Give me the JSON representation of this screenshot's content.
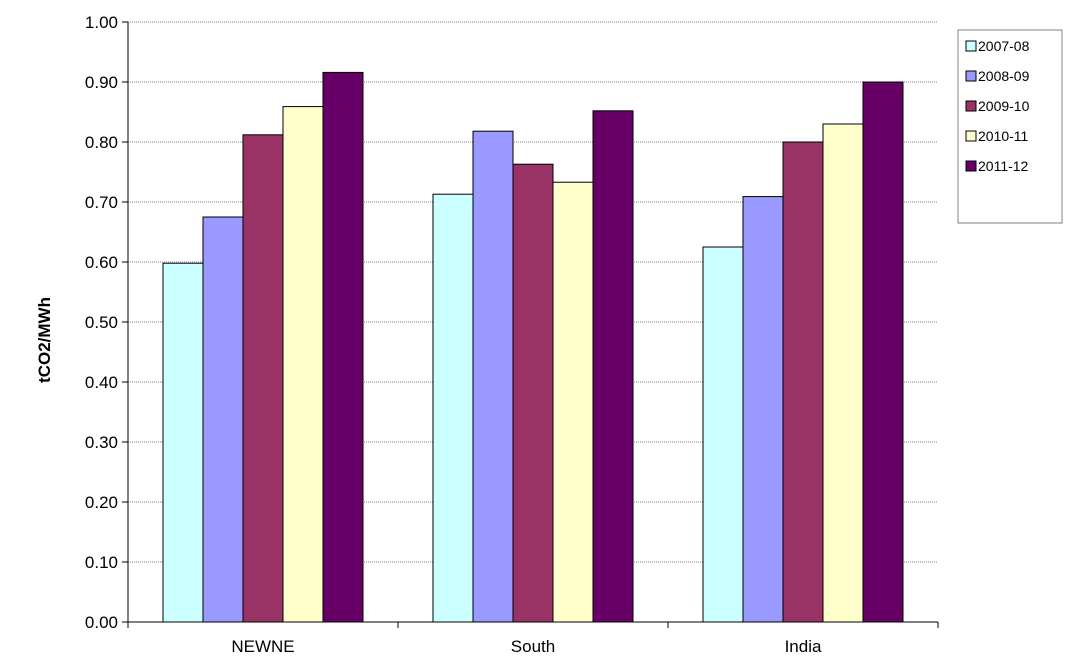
{
  "chart_data": {
    "type": "bar",
    "title": "",
    "xlabel": "",
    "ylabel": "tCO2/MWh",
    "ylim": [
      0,
      1.0
    ],
    "ytick_step": 0.1,
    "ytick_labels": [
      "0.00",
      "0.10",
      "0.20",
      "0.30",
      "0.40",
      "0.50",
      "0.60",
      "0.70",
      "0.80",
      "0.90",
      "1.00"
    ],
    "grid": "horizontal-dotted",
    "legend_position": "top-right",
    "categories": [
      "NEWNE",
      "South",
      "India"
    ],
    "series": [
      {
        "name": "2007-08",
        "color": "#ccffff",
        "values": [
          0.598,
          0.713,
          0.625
        ]
      },
      {
        "name": "2008-09",
        "color": "#9999ff",
        "values": [
          0.675,
          0.818,
          0.709
        ]
      },
      {
        "name": "2009-10",
        "color": "#993366",
        "values": [
          0.812,
          0.763,
          0.8
        ]
      },
      {
        "name": "2010-11",
        "color": "#ffffcc",
        "values": [
          0.859,
          0.733,
          0.83
        ]
      },
      {
        "name": "2011-12",
        "color": "#660066",
        "values": [
          0.916,
          0.852,
          0.9
        ]
      }
    ]
  }
}
